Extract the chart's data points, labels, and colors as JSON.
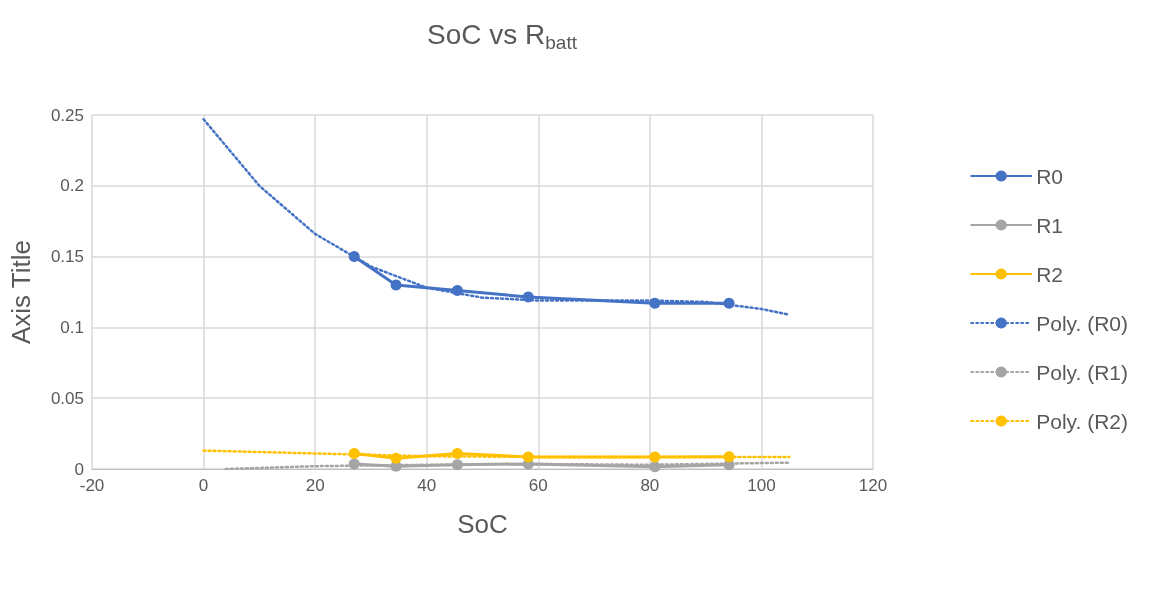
{
  "chart_data": {
    "type": "line",
    "title": "SoC vs R$_{batt}$",
    "xlabel": "SoC",
    "ylabel": "Axis Title",
    "xlim": [
      -20,
      120
    ],
    "xticks": [
      -20,
      0,
      20,
      40,
      60,
      80,
      100,
      120
    ],
    "ylim": [
      0,
      0.25
    ],
    "yticks": [
      0,
      0.05,
      0.1,
      0.15,
      0.2,
      0.25
    ],
    "grid": true,
    "legend": "right",
    "marker": "circle",
    "line_style": "solid",
    "series": [
      {
        "name": "R0",
        "color": "#4472c4",
        "x": [
          27,
          34.5,
          45.5,
          58.2,
          80.9,
          94.2
        ],
        "values": [
          0.15,
          0.13,
          0.126,
          0.1215,
          0.117,
          0.117
        ]
      },
      {
        "name": "R1",
        "color": "#a5a5a5",
        "x": [
          27,
          34.5,
          45.5,
          58.2,
          80.9,
          94.2
        ],
        "values": [
          0.0035,
          0.002,
          0.003,
          0.0036,
          0.0016,
          0.003
        ]
      },
      {
        "name": "R2",
        "color": "#ffc000",
        "x": [
          27,
          34.5,
          45.5,
          58.2,
          80.9,
          94.2
        ],
        "values": [
          0.011,
          0.0076,
          0.011,
          0.0085,
          0.0085,
          0.0087
        ]
      },
      {
        "name": "Poly. (R0)",
        "color": "#4472c4",
        "marker": "none",
        "line_style": "dotted",
        "x": [
          0,
          10,
          20,
          30,
          40,
          50,
          60,
          70,
          80,
          90,
          100,
          105
        ],
        "values": [
          0.247,
          0.2,
          0.166,
          0.143,
          0.128,
          0.121,
          0.119,
          0.119,
          0.119,
          0.118,
          0.113,
          0.109
        ]
      },
      {
        "name": "Poly. (R1)",
        "color": "#a5a5a5",
        "marker": "none",
        "line_style": "dotted",
        "x": [
          4,
          20,
          40,
          60,
          80,
          105
        ],
        "values": [
          0,
          0.002,
          0.003,
          0.0035,
          0.003,
          0.0045
        ]
      },
      {
        "name": "Poly. (R2)",
        "color": "#ffc000",
        "marker": "none",
        "line_style": "dotted",
        "x": [
          0,
          20,
          40,
          60,
          80,
          105
        ],
        "values": [
          0.013,
          0.011,
          0.009,
          0.0085,
          0.0085,
          0.0085
        ]
      }
    ]
  }
}
